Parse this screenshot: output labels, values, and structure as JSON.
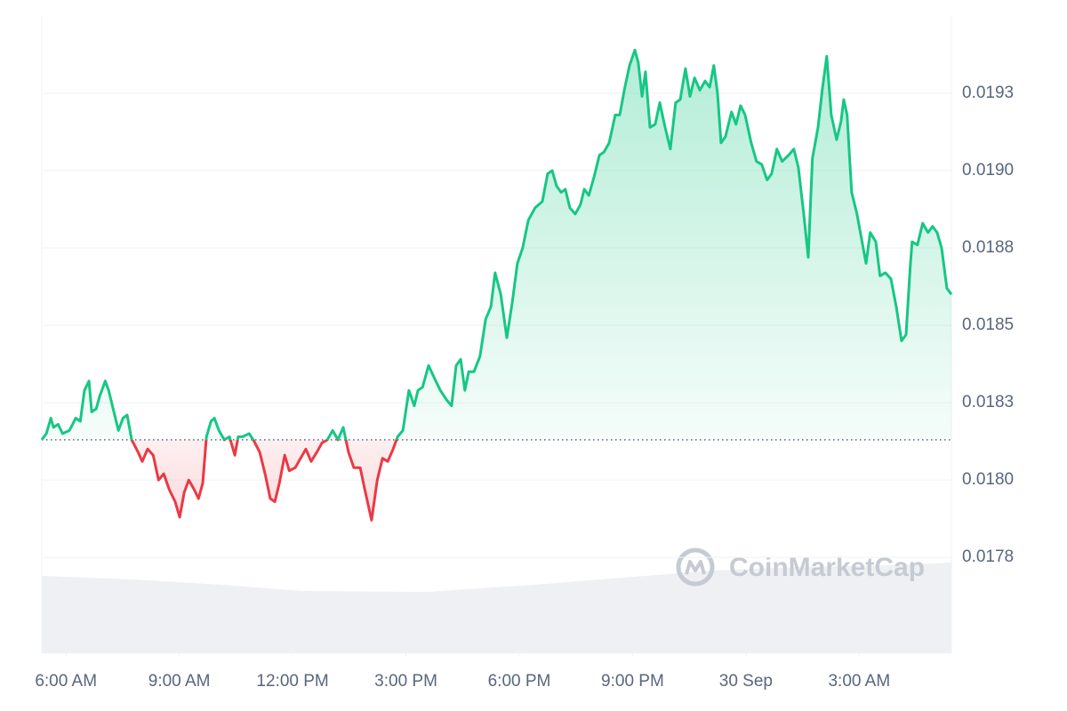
{
  "chart_data": {
    "type": "line",
    "watermark": "CoinMarketCap",
    "up_color": "#16c784",
    "down_color": "#ea3943",
    "grid": true,
    "xlim": [
      -0.64,
      23.44
    ],
    "xticks": [
      {
        "value": 0,
        "label": "6:00 AM"
      },
      {
        "value": 3,
        "label": "9:00 AM"
      },
      {
        "value": 6,
        "label": "12:00 PM"
      },
      {
        "value": 9,
        "label": "3:00 PM"
      },
      {
        "value": 12,
        "label": "6:00 PM"
      },
      {
        "value": 15,
        "label": "9:00 PM"
      },
      {
        "value": 18,
        "label": "30 Sep"
      },
      {
        "value": 21,
        "label": "3:00 AM"
      }
    ],
    "ylim": [
      0.01744,
      0.0195
    ],
    "yticks": [
      {
        "value": 0.01775,
        "label": "0.0178"
      },
      {
        "value": 0.018,
        "label": "0.0180"
      },
      {
        "value": 0.01825,
        "label": "0.0183"
      },
      {
        "value": 0.0185,
        "label": "0.0185"
      },
      {
        "value": 0.01875,
        "label": "0.0188"
      },
      {
        "value": 0.019,
        "label": "0.0190"
      },
      {
        "value": 0.01925,
        "label": "0.0193"
      }
    ],
    "x": [
      -0.64,
      -0.52,
      -0.4,
      -0.33,
      -0.21,
      -0.09,
      0.09,
      0.26,
      0.38,
      0.49,
      0.61,
      0.68,
      0.8,
      0.89,
      1.04,
      1.13,
      1.27,
      1.39,
      1.51,
      1.62,
      1.74,
      1.91,
      2.02,
      2.16,
      2.31,
      2.45,
      2.59,
      2.73,
      2.89,
      3.01,
      3.13,
      3.25,
      3.39,
      3.51,
      3.62,
      3.72,
      3.84,
      3.93,
      4.05,
      4.19,
      4.33,
      4.47,
      4.56,
      4.68,
      4.85,
      4.96,
      5.13,
      5.27,
      5.41,
      5.53,
      5.65,
      5.79,
      5.91,
      6.07,
      6.21,
      6.35,
      6.49,
      6.64,
      6.78,
      6.92,
      7.06,
      7.2,
      7.34,
      7.48,
      7.62,
      7.79,
      7.91,
      8.09,
      8.24,
      8.38,
      8.52,
      8.66,
      8.78,
      8.92,
      9.08,
      9.22,
      9.32,
      9.44,
      9.6,
      9.79,
      9.91,
      10.07,
      10.21,
      10.33,
      10.45,
      10.56,
      10.66,
      10.8,
      10.96,
      11.11,
      11.25,
      11.36,
      11.51,
      11.67,
      11.81,
      11.95,
      12.09,
      12.24,
      12.42,
      12.61,
      12.75,
      12.87,
      12.99,
      13.11,
      13.22,
      13.34,
      13.48,
      13.62,
      13.72,
      13.84,
      13.98,
      14.12,
      14.24,
      14.38,
      14.54,
      14.66,
      14.78,
      14.92,
      15.06,
      15.15,
      15.25,
      15.34,
      15.46,
      15.6,
      15.72,
      15.86,
      16.0,
      16.14,
      16.26,
      16.4,
      16.52,
      16.64,
      16.78,
      16.92,
      17.04,
      17.15,
      17.25,
      17.34,
      17.46,
      17.62,
      17.74,
      17.86,
      17.98,
      18.14,
      18.28,
      18.42,
      18.56,
      18.68,
      18.82,
      18.96,
      19.13,
      19.27,
      19.39,
      19.53,
      19.65,
      19.76,
      19.91,
      20.02,
      20.14,
      20.26,
      20.4,
      20.52,
      20.59,
      20.68,
      20.8,
      20.94,
      21.06,
      21.18,
      21.29,
      21.44,
      21.55,
      21.69,
      21.84,
      21.98,
      22.12,
      22.24,
      22.35,
      22.4,
      22.54,
      22.68,
      22.82,
      22.94,
      23.06,
      23.18,
      23.32,
      23.44
    ],
    "values": [
      0.01813,
      0.01815,
      0.0182,
      0.01817,
      0.01818,
      0.01815,
      0.01816,
      0.0182,
      0.01819,
      0.01829,
      0.01832,
      0.01822,
      0.01823,
      0.01827,
      0.01832,
      0.01829,
      0.01822,
      0.01816,
      0.0182,
      0.01821,
      0.01813,
      0.01809,
      0.01806,
      0.0181,
      0.01808,
      0.018,
      0.01802,
      0.01797,
      0.01793,
      0.01788,
      0.01796,
      0.018,
      0.01797,
      0.01794,
      0.01799,
      0.01814,
      0.01819,
      0.0182,
      0.01816,
      0.01813,
      0.01814,
      0.01808,
      0.01814,
      0.01814,
      0.01815,
      0.01813,
      0.01809,
      0.01802,
      0.01794,
      0.01793,
      0.01799,
      0.01808,
      0.01803,
      0.01804,
      0.01807,
      0.0181,
      0.01806,
      0.01809,
      0.01812,
      0.01813,
      0.01816,
      0.01813,
      0.01817,
      0.01809,
      0.01804,
      0.01804,
      0.01797,
      0.01787,
      0.018,
      0.01807,
      0.01806,
      0.0181,
      0.01814,
      0.01816,
      0.01829,
      0.01824,
      0.01829,
      0.0183,
      0.01837,
      0.01832,
      0.01829,
      0.01826,
      0.01824,
      0.01837,
      0.01839,
      0.01829,
      0.01835,
      0.01835,
      0.0184,
      0.01852,
      0.01856,
      0.01867,
      0.0186,
      0.01846,
      0.01857,
      0.0187,
      0.01875,
      0.01884,
      0.01888,
      0.0189,
      0.01899,
      0.019,
      0.01895,
      0.01893,
      0.01894,
      0.01888,
      0.01886,
      0.01889,
      0.01894,
      0.01892,
      0.01898,
      0.01905,
      0.01906,
      0.01909,
      0.01918,
      0.01918,
      0.01926,
      0.01934,
      0.01939,
      0.01935,
      0.01924,
      0.01932,
      0.01914,
      0.01915,
      0.01922,
      0.01914,
      0.01907,
      0.01922,
      0.01923,
      0.01933,
      0.01924,
      0.0193,
      0.01926,
      0.01929,
      0.01927,
      0.01934,
      0.01925,
      0.01909,
      0.01911,
      0.01919,
      0.01915,
      0.01921,
      0.01918,
      0.01909,
      0.01903,
      0.01902,
      0.01897,
      0.01899,
      0.01907,
      0.01903,
      0.01905,
      0.01907,
      0.01901,
      0.01886,
      0.01872,
      0.01904,
      0.01914,
      0.01926,
      0.01937,
      0.01918,
      0.0191,
      0.01916,
      0.01923,
      0.01918,
      0.01893,
      0.01886,
      0.01878,
      0.0187,
      0.0188,
      0.01877,
      0.01866,
      0.01867,
      0.01865,
      0.01856,
      0.01845,
      0.01847,
      0.01869,
      0.01877,
      0.01876,
      0.01883,
      0.0188,
      0.01882,
      0.0188,
      0.01875,
      0.01862,
      0.0186
    ]
  }
}
